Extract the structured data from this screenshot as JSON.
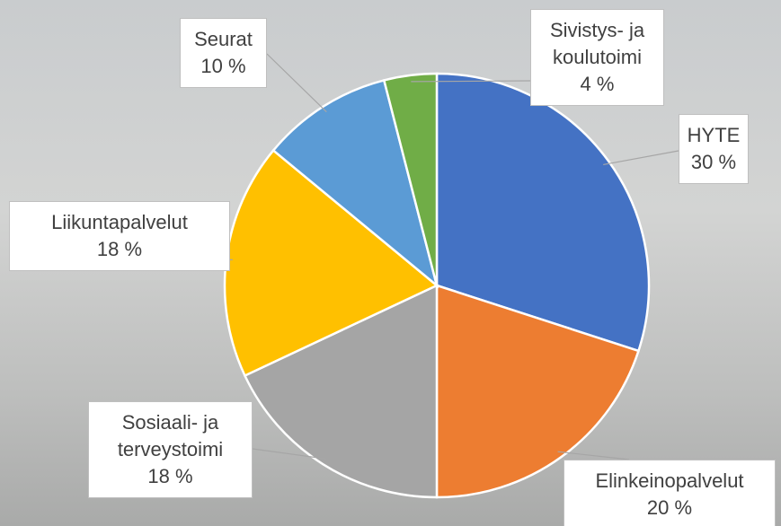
{
  "chart_data": {
    "type": "pie",
    "categories": [
      "HYTE",
      "Elinkeinopalvelut",
      "Sosiaali- ja terveystoimi",
      "Liikuntapalvelut",
      "Seurat",
      "Sivistys- ja koulutoimi"
    ],
    "values": [
      30,
      20,
      18,
      18,
      10,
      4
    ],
    "value_labels": [
      "30 %",
      "20 %",
      "18 %",
      "18 %",
      "10 %",
      "4 %"
    ],
    "colors": [
      "#4472c4",
      "#ed7d31",
      "#a5a5a5",
      "#ffc000",
      "#5b9bd5",
      "#70ad47"
    ]
  }
}
